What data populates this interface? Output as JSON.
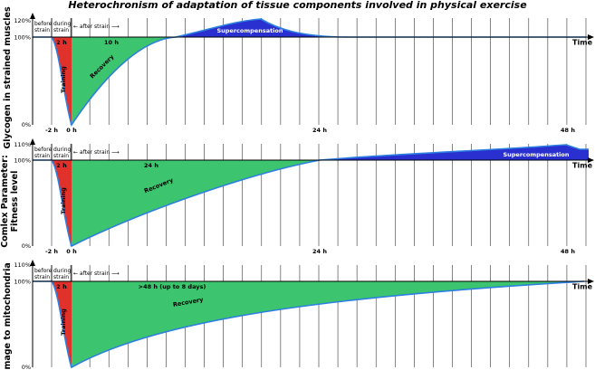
{
  "title": "Heterochronism of adaptation of tissue components involved in physical exercise",
  "colors": {
    "training": "#e0312b",
    "recovery": "#3cc46e",
    "supercompensation": "#2a2fd0",
    "curve": "#2d7fe0",
    "grid": "#333333"
  },
  "panels": [
    {
      "id": "glycogen",
      "ylabel": "Glycogen in strained muscles",
      "yticks": {
        "top": "120%",
        "base": "100%",
        "zero": "0%"
      },
      "phase_labels": {
        "before": "before\nstrain",
        "during": "during\nstrain",
        "after": "← after strain ⟶"
      },
      "duration_training": "2 h",
      "duration_recovery": "10 h",
      "training_label": "Training",
      "recovery_label": "Recovery",
      "supercomp_label": "Supercompensation",
      "time_label": "Time",
      "xticks": [
        "-2 h",
        "0 h",
        "24 h",
        "48 h"
      ]
    },
    {
      "id": "fitness",
      "ylabel": "Comlex Parameter:\nFitness level",
      "yticks": {
        "top": "110%",
        "base": "100%",
        "zero": "0%"
      },
      "phase_labels": {
        "before": "before\nstrain",
        "during": "during\nstrain",
        "after": "← after strain ⟶"
      },
      "duration_training": "2 h",
      "duration_recovery": "24 h",
      "training_label": "Training",
      "recovery_label": "Recovery",
      "supercomp_label": "Supercompensation",
      "time_label": "Time",
      "xticks": [
        "-2 h",
        "0 h",
        "24 h",
        "48 h"
      ]
    },
    {
      "id": "mitochondria",
      "ylabel": "Damage to mitochondria",
      "yticks": {
        "top": "110%",
        "base": "100%",
        "zero": "0%"
      },
      "phase_labels": {
        "before": "before\nstrain",
        "during": "during\nstrain",
        "after": "← after strain ⟶"
      },
      "duration_training": "2 h",
      "duration_recovery": ">48 h (up to 8 days)",
      "training_label": "Training",
      "recovery_label": "Recovery",
      "supercomp_label": "",
      "time_label": "Time",
      "xticks": []
    }
  ]
}
